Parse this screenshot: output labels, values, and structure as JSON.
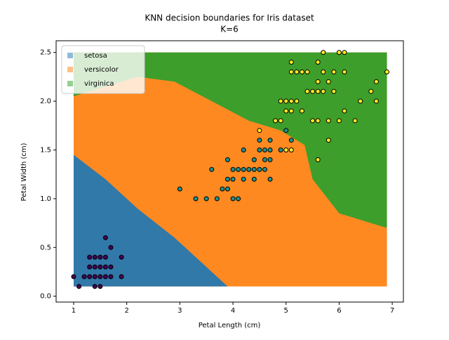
{
  "chart_data": {
    "type": "scatter",
    "title": "KNN decision boundaries for Iris dataset",
    "subtitle": "K=6",
    "x_label": "Petal Length (cm)",
    "y_label": "Petal Width (cm)",
    "xlim": [
      0.67,
      7.21
    ],
    "ylim": [
      -0.06,
      2.62
    ],
    "xticks": [
      1,
      2,
      3,
      4,
      5,
      6,
      7
    ],
    "yticks": [
      {
        "value": 0,
        "label": "0.0"
      },
      0.5,
      {
        "value": 1,
        "label": "1.0"
      },
      1.5,
      {
        "value": 2,
        "label": "2.0"
      },
      2.5
    ],
    "legend": "upper left",
    "regions": [
      {
        "name": "versicolor",
        "color": "#ff7f0e",
        "x": [
          1,
          6.9,
          6.9,
          1
        ],
        "y": [
          0.1,
          0.1,
          2.5,
          2.5
        ]
      },
      {
        "name": "setosa",
        "color": "#1f77b4",
        "x": [
          1,
          1,
          1.6,
          2.2,
          2.9,
          3.5,
          3.9
        ],
        "y": [
          0.1,
          1.45,
          1.2,
          0.9,
          0.6,
          0.3,
          0.1
        ]
      },
      {
        "name": "virginica",
        "color": "#2ca02c",
        "x": [
          1,
          6.9,
          6.9,
          6.0,
          5.5,
          5.35,
          4.9,
          4.3,
          3.6,
          2.9,
          2.2,
          1
        ],
        "y": [
          2.5,
          2.5,
          0.7,
          0.85,
          1.2,
          1.55,
          1.7,
          1.8,
          2.0,
          2.2,
          2.25,
          2.05
        ]
      }
    ],
    "legend_order": [
      1,
      0,
      2
    ],
    "points": [
      {
        "color": "#440154",
        "x": [
          1.0,
          1.1,
          1.2,
          1.3,
          1.3,
          1.3,
          1.4,
          1.4,
          1.4,
          1.5,
          1.5,
          1.5,
          1.6,
          1.6,
          1.6,
          1.7,
          1.7,
          1.9,
          1.9,
          1.5,
          1.6,
          1.4,
          1.7
        ],
        "values": [
          0.2,
          0.1,
          0.2,
          0.2,
          0.3,
          0.4,
          0.1,
          0.2,
          0.3,
          0.1,
          0.2,
          0.4,
          0.2,
          0.4,
          0.6,
          0.2,
          0.5,
          0.2,
          0.4,
          0.3,
          0.3,
          0.4,
          0.3
        ]
      },
      {
        "color": "#21918c",
        "x": [
          3.0,
          3.3,
          3.5,
          3.6,
          3.7,
          3.8,
          3.9,
          3.9,
          3.9,
          4.0,
          4.0,
          4.0,
          4.1,
          4.1,
          4.2,
          4.2,
          4.2,
          4.3,
          4.4,
          4.4,
          4.4,
          4.5,
          4.5,
          4.6,
          4.6,
          4.6,
          4.7,
          4.7,
          4.7,
          4.7,
          4.8,
          4.9,
          5.0,
          5.1,
          4.5
        ],
        "values": [
          1.1,
          1.0,
          1.0,
          1.3,
          1.0,
          1.1,
          1.1,
          1.2,
          1.4,
          1.0,
          1.2,
          1.3,
          1.0,
          1.3,
          1.2,
          1.3,
          1.5,
          1.3,
          1.2,
          1.3,
          1.4,
          1.3,
          1.5,
          1.3,
          1.4,
          1.5,
          1.2,
          1.4,
          1.5,
          1.6,
          1.8,
          1.5,
          1.7,
          1.6,
          1.6
        ]
      },
      {
        "color": "#fde725",
        "x": [
          4.5,
          4.8,
          4.9,
          5.0,
          5.0,
          5.1,
          5.1,
          5.1,
          5.1,
          5.1,
          5.2,
          5.2,
          5.3,
          5.3,
          5.4,
          5.4,
          5.5,
          5.5,
          5.6,
          5.6,
          5.6,
          5.6,
          5.6,
          5.7,
          5.7,
          5.7,
          5.8,
          5.8,
          5.8,
          5.9,
          5.9,
          6.0,
          6.0,
          6.1,
          6.1,
          6.1,
          6.3,
          6.4,
          6.6,
          6.7,
          6.7,
          6.9,
          4.9,
          5.0
        ],
        "values": [
          1.7,
          1.8,
          1.8,
          1.5,
          2.0,
          1.5,
          1.9,
          2.0,
          2.3,
          2.4,
          2.0,
          2.3,
          1.9,
          2.3,
          2.1,
          2.3,
          1.8,
          2.1,
          1.4,
          1.8,
          2.1,
          2.2,
          2.4,
          2.1,
          2.3,
          2.5,
          1.6,
          1.8,
          2.2,
          2.1,
          2.3,
          1.8,
          2.5,
          1.9,
          2.3,
          2.5,
          1.8,
          2.0,
          2.1,
          2.0,
          2.2,
          2.3,
          2.0,
          1.9
        ]
      }
    ]
  }
}
